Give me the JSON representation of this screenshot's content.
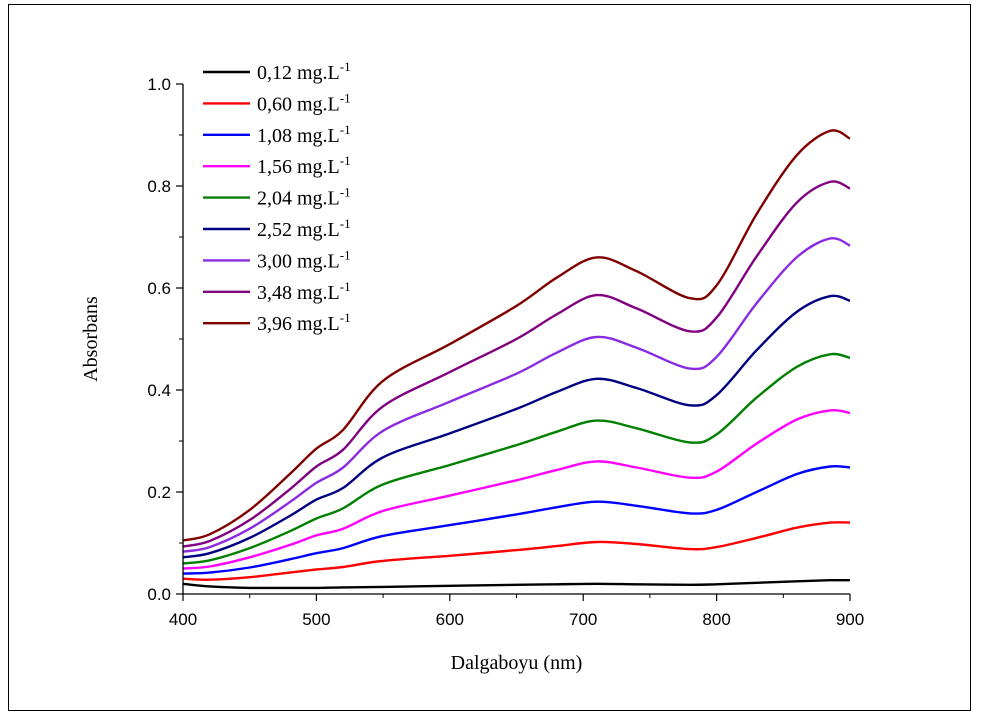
{
  "chart_data": {
    "type": "line",
    "title": "",
    "xlabel": "Dalgaboyu (nm)",
    "ylabel": "Absorbans",
    "xlim": [
      400,
      900
    ],
    "ylim": [
      0.0,
      1.0
    ],
    "x_ticks": [
      400,
      500,
      600,
      700,
      800,
      900
    ],
    "x_tick_labels": [
      "400",
      "500",
      "600",
      "700",
      "800",
      "900"
    ],
    "y_ticks": [
      0.0,
      0.2,
      0.4,
      0.6,
      0.8,
      1.0
    ],
    "y_tick_labels": [
      "0.0",
      "0.2",
      "0.4",
      "0.6",
      "0.8",
      "1.0"
    ],
    "grid": false,
    "legend_position": "top-left",
    "x": [
      400,
      420,
      450,
      480,
      500,
      520,
      550,
      600,
      650,
      680,
      710,
      740,
      780,
      800,
      830,
      860,
      885,
      900
    ],
    "series": [
      {
        "name": "0,12 mg.L",
        "unit_superscript": "-1",
        "color": "#000000",
        "values": [
          0.02,
          0.015,
          0.012,
          0.012,
          0.012,
          0.013,
          0.014,
          0.016,
          0.018,
          0.019,
          0.02,
          0.019,
          0.018,
          0.019,
          0.022,
          0.025,
          0.027,
          0.027
        ]
      },
      {
        "name": "0,60 mg.L",
        "unit_superscript": "-1",
        "color": "#ff0000",
        "values": [
          0.03,
          0.028,
          0.033,
          0.042,
          0.048,
          0.053,
          0.065,
          0.075,
          0.086,
          0.094,
          0.102,
          0.098,
          0.088,
          0.092,
          0.11,
          0.13,
          0.14,
          0.14
        ]
      },
      {
        "name": "1,08 mg.L",
        "unit_superscript": "-1",
        "color": "#0000ff",
        "values": [
          0.04,
          0.042,
          0.052,
          0.068,
          0.08,
          0.09,
          0.114,
          0.135,
          0.156,
          0.17,
          0.181,
          0.173,
          0.158,
          0.165,
          0.2,
          0.235,
          0.25,
          0.248
        ]
      },
      {
        "name": "1,56 mg.L",
        "unit_superscript": "-1",
        "color": "#ff00ff",
        "values": [
          0.05,
          0.054,
          0.072,
          0.096,
          0.115,
          0.128,
          0.163,
          0.193,
          0.223,
          0.243,
          0.26,
          0.248,
          0.228,
          0.24,
          0.295,
          0.342,
          0.36,
          0.355
        ]
      },
      {
        "name": "2,04 mg.L",
        "unit_superscript": "-1",
        "color": "#008000",
        "values": [
          0.06,
          0.066,
          0.09,
          0.123,
          0.148,
          0.168,
          0.215,
          0.253,
          0.292,
          0.318,
          0.34,
          0.325,
          0.297,
          0.313,
          0.385,
          0.445,
          0.47,
          0.463
        ]
      },
      {
        "name": "2,52 mg.L",
        "unit_superscript": "-1",
        "color": "#000080",
        "values": [
          0.072,
          0.08,
          0.11,
          0.153,
          0.185,
          0.208,
          0.268,
          0.315,
          0.363,
          0.396,
          0.422,
          0.404,
          0.37,
          0.39,
          0.478,
          0.553,
          0.584,
          0.575
        ]
      },
      {
        "name": "3,00 mg.L",
        "unit_superscript": "-1",
        "color": "#8a2be2",
        "values": [
          0.083,
          0.092,
          0.128,
          0.18,
          0.218,
          0.248,
          0.32,
          0.377,
          0.432,
          0.473,
          0.504,
          0.483,
          0.442,
          0.465,
          0.57,
          0.66,
          0.697,
          0.683
        ]
      },
      {
        "name": "3,48 mg.L",
        "unit_superscript": "-1",
        "color": "#800080",
        "values": [
          0.093,
          0.104,
          0.145,
          0.205,
          0.25,
          0.283,
          0.368,
          0.435,
          0.5,
          0.548,
          0.586,
          0.56,
          0.515,
          0.542,
          0.662,
          0.767,
          0.808,
          0.795
        ]
      },
      {
        "name": "3,96 mg.L",
        "unit_superscript": "-1",
        "color": "#800000",
        "values": [
          0.105,
          0.117,
          0.165,
          0.235,
          0.285,
          0.322,
          0.418,
          0.49,
          0.565,
          0.62,
          0.66,
          0.633,
          0.58,
          0.605,
          0.745,
          0.86,
          0.908,
          0.893
        ]
      }
    ]
  }
}
